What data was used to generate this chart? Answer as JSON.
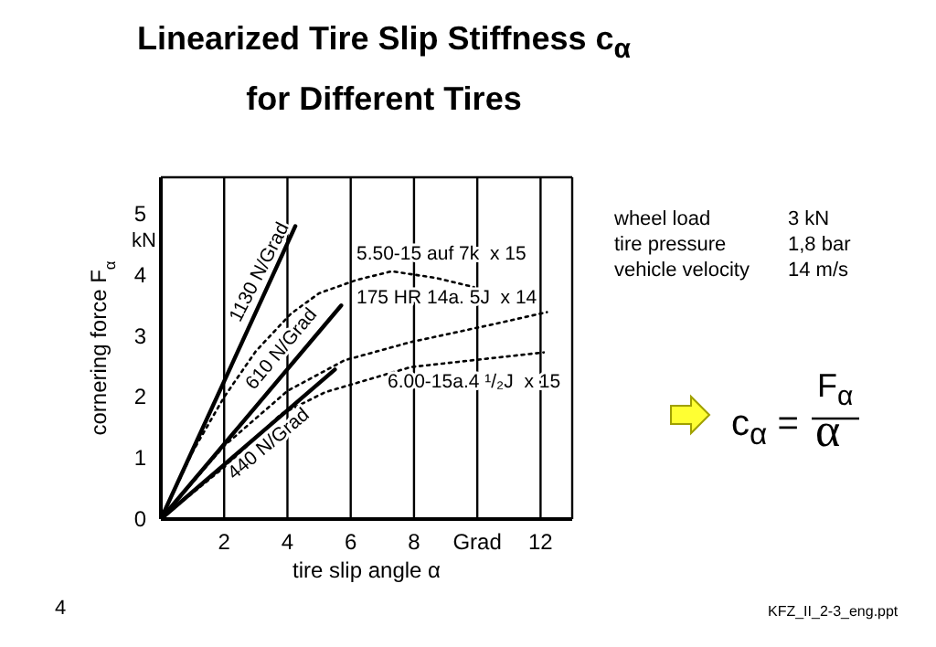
{
  "chart_data": {
    "type": "line",
    "title": "Linearized Tire Slip Stiffness c$_{α}$ for Different Tires",
    "xlabel": "tire slip angle α",
    "ylabel": "cornering force F$_{α}$",
    "xlim": [
      0,
      13
    ],
    "xticks": [
      2,
      4,
      6,
      8,
      {
        "value": 10,
        "label": "Grad"
      },
      12
    ],
    "ylim": [
      0,
      5.6
    ],
    "yticks": [
      0,
      1,
      2,
      3,
      4,
      5
    ],
    "grid": true,
    "marker": "none",
    "series": [
      {
        "color": "#000000",
        "line_style": "solid",
        "x": [
          0,
          4.25
        ],
        "values": [
          0,
          4.8
        ]
      },
      {
        "color": "#000000",
        "line_style": "solid",
        "x": [
          0,
          5.7
        ],
        "values": [
          0,
          3.5
        ]
      },
      {
        "color": "#000000",
        "line_style": "solid",
        "x": [
          0,
          5.5
        ],
        "values": [
          0,
          2.45
        ]
      },
      {
        "color": "#000000",
        "line_style": "dotted",
        "x": [
          0,
          1,
          2,
          3,
          4.1,
          5,
          6.2,
          7.3,
          8.7,
          9.9
        ],
        "values": [
          0,
          1.1,
          2.0,
          2.75,
          3.36,
          3.7,
          3.92,
          4.06,
          3.95,
          3.8
        ]
      },
      {
        "color": "#000000",
        "line_style": "dotted",
        "x": [
          0,
          2,
          4,
          5.8,
          7.9,
          10.4,
          12.2
        ],
        "values": [
          0,
          1.2,
          2.1,
          2.6,
          2.9,
          3.18,
          3.39
        ]
      },
      {
        "color": "#000000",
        "line_style": "dotted",
        "x": [
          0,
          2,
          3.8,
          5.2,
          7.9,
          12.1
        ],
        "values": [
          0,
          0.85,
          1.72,
          2.08,
          2.49,
          2.73
        ]
      }
    ],
    "annotations": [
      "1130 N/Grad",
      "610 N/Grad",
      "440 N/Grad",
      "5.50-15 auf 7k  x 15",
      "175 HR 14a. 5J  x 14",
      "6.00-15a.4 ¹/₂J  x 15",
      "kN",
      "wheel load",
      "3 kN",
      "tire pressure",
      "1,8 bar",
      "vehicle velocity",
      "14 m/s",
      "c$_{α}$ =",
      "F$_{α}$",
      "α",
      "4",
      "KFZ_II_2-3_eng.ppt"
    ]
  }
}
